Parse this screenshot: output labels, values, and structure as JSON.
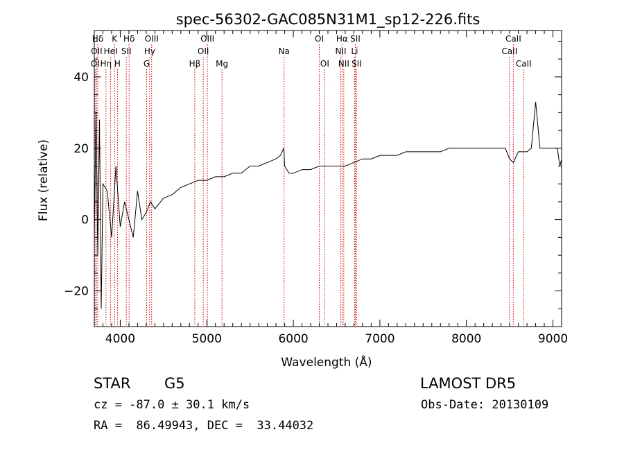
{
  "chart_data": {
    "type": "line",
    "title": "spec-56302-GAC085N31M1_sp12-226.fits",
    "xlabel": "Wavelength (Å)",
    "ylabel": "Flux (relative)",
    "xlim": [
      3700,
      9100
    ],
    "ylim": [
      -30,
      53
    ],
    "x_ticks": [
      4000,
      5000,
      6000,
      7000,
      8000,
      9000
    ],
    "y_ticks": [
      -20,
      0,
      20,
      40
    ],
    "x_tick_labels": [
      "4000",
      "5000",
      "6000",
      "7000",
      "8000",
      "9000"
    ],
    "y_tick_labels": [
      "−20",
      "0",
      "20",
      "40"
    ],
    "line_color": "#000000",
    "marker_color": "#cc0000",
    "grid": false,
    "series": [
      {
        "x": [
          3700,
          3720,
          3740,
          3760,
          3780,
          3800,
          3850,
          3900,
          3950,
          4000,
          4050,
          4100,
          4150,
          4200,
          4250,
          4300,
          4350,
          4400,
          4500,
          4600,
          4700,
          4800,
          4900,
          5000,
          5100,
          5200,
          5300,
          5400,
          5500,
          5600,
          5700,
          5800,
          5850,
          5890,
          5900,
          5950,
          6000,
          6100,
          6200,
          6300,
          6400,
          6500,
          6563,
          6600,
          6700,
          6800,
          6900,
          7000,
          7100,
          7200,
          7300,
          7400,
          7500,
          7600,
          7700,
          7800,
          7900,
          8000,
          8100,
          8200,
          8300,
          8400,
          8450,
          8498,
          8542,
          8600,
          8662,
          8700,
          8750,
          8800,
          8850,
          8900,
          8950,
          9000,
          9050,
          9080,
          9100
        ],
        "y": [
          -5,
          30,
          -10,
          28,
          -25,
          10,
          8,
          -5,
          15,
          -2,
          5,
          0,
          -5,
          8,
          0,
          2,
          5,
          3,
          6,
          7,
          9,
          10,
          11,
          11,
          12,
          12,
          13,
          13,
          15,
          15,
          16,
          17,
          18,
          20,
          15,
          13,
          13,
          14,
          14,
          15,
          15,
          15,
          15,
          15,
          16,
          17,
          17,
          18,
          18,
          18,
          19,
          19,
          19,
          19,
          19,
          20,
          20,
          20,
          20,
          20,
          20,
          20,
          20,
          17,
          16,
          19,
          19,
          19,
          20,
          33,
          20,
          20,
          20,
          20,
          20,
          15,
          17
        ]
      }
    ],
    "line_markers": [
      {
        "label": "Hδ",
        "x": 3740,
        "row": 0
      },
      {
        "label": "OII",
        "x": 3727,
        "row": 1
      },
      {
        "label": "OI",
        "x": 3710,
        "row": 2
      },
      {
        "label": "K",
        "x": 3934,
        "row": 0
      },
      {
        "label": "Hδ",
        "x": 4102,
        "row": 0
      },
      {
        "label": "OIII",
        "x": 4363,
        "row": 0
      },
      {
        "label": "HeI",
        "x": 3889,
        "row": 1
      },
      {
        "label": "SII",
        "x": 4070,
        "row": 1
      },
      {
        "label": "Hγ",
        "x": 4340,
        "row": 1
      },
      {
        "label": "Hη",
        "x": 3835,
        "row": 2
      },
      {
        "label": "H",
        "x": 3968,
        "row": 2
      },
      {
        "label": "G",
        "x": 4305,
        "row": 2
      },
      {
        "label": "OIII",
        "x": 5007,
        "row": 0
      },
      {
        "label": "OII",
        "x": 4959,
        "row": 1
      },
      {
        "label": "Hβ",
        "x": 4861,
        "row": 2
      },
      {
        "label": "Mg",
        "x": 5175,
        "row": 2
      },
      {
        "label": "Na",
        "x": 5893,
        "row": 1
      },
      {
        "label": "OI",
        "x": 6300,
        "row": 0
      },
      {
        "label": "OI",
        "x": 6363,
        "row": 2
      },
      {
        "label": "Hα",
        "x": 6563,
        "row": 0
      },
      {
        "label": "SII",
        "x": 6716,
        "row": 0
      },
      {
        "label": "NII",
        "x": 6548,
        "row": 1
      },
      {
        "label": "Li",
        "x": 6708,
        "row": 1
      },
      {
        "label": "NII",
        "x": 6583,
        "row": 2
      },
      {
        "label": "SII",
        "x": 6731,
        "row": 2
      },
      {
        "label": "CaII",
        "x": 8542,
        "row": 0
      },
      {
        "label": "CaII",
        "x": 8498,
        "row": 1
      },
      {
        "label": "CaII",
        "x": 8662,
        "row": 2
      }
    ]
  },
  "info": {
    "object_class": "STAR",
    "subclass": "G5",
    "survey": "LAMOST DR5",
    "velocity": "cz = -87.0 ± 30.1 km/s",
    "obs_date": "Obs-Date: 20130109",
    "coords": "RA =  86.49943, DEC =  33.44032"
  }
}
